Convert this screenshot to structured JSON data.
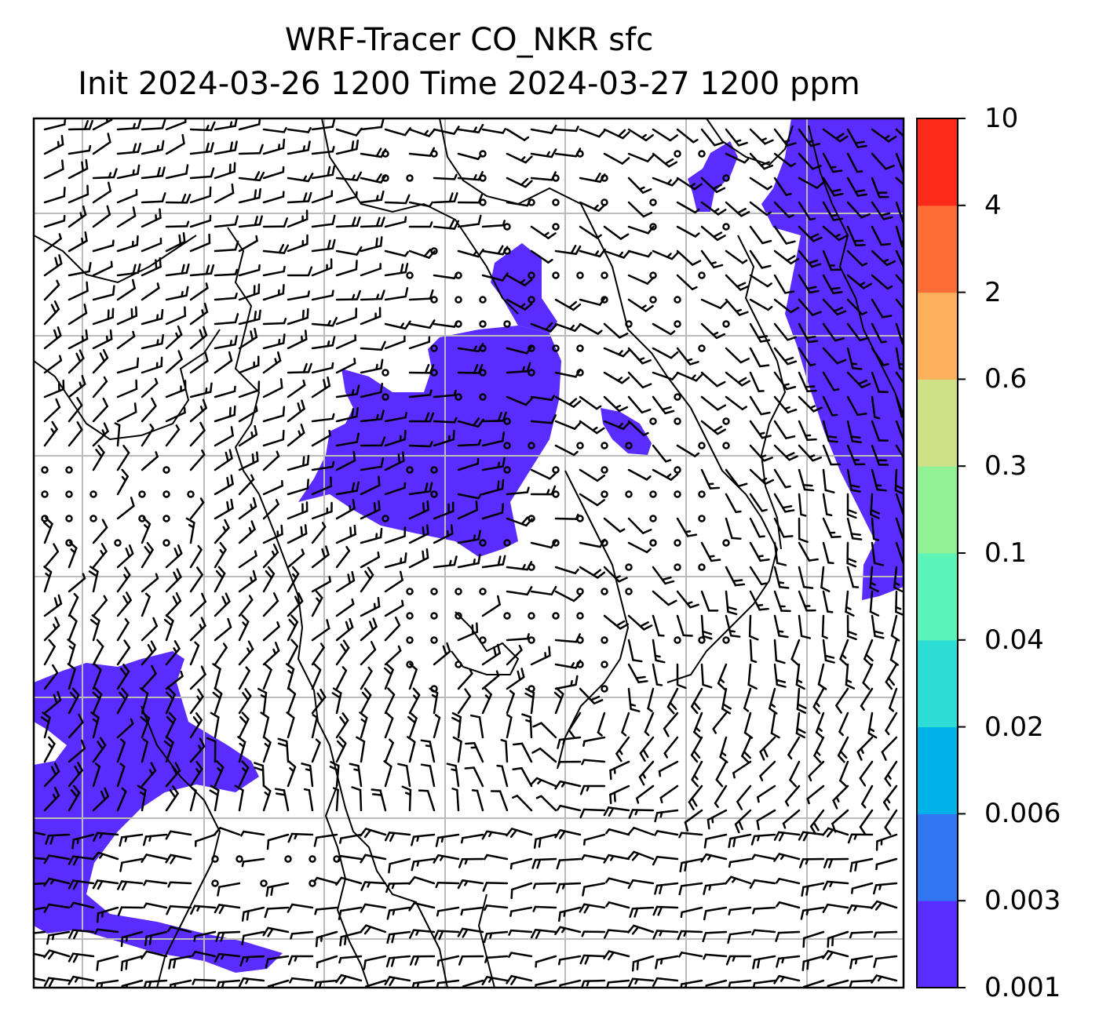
{
  "title": {
    "line1": "WRF-Tracer CO_NKR sfc",
    "line2": "Init 2024-03-26 1200 Time 2024-03-27 1200 ppm"
  },
  "colorbar": {
    "levels": [
      "0.001",
      "0.003",
      "0.006",
      "0.02",
      "0.04",
      "0.1",
      "0.3",
      "0.6",
      "2",
      "4",
      "10"
    ],
    "colors": [
      "#5b2cff",
      "#3176f0",
      "#00b2e8",
      "#2ddcd4",
      "#5df4b8",
      "#90f294",
      "#cfe086",
      "#fcb05c",
      "#ff6d36",
      "#fc2a1a"
    ]
  },
  "tracer_fill_color": "#5b2cff",
  "map_style": {
    "gridlines": true,
    "gridline_color": "#bbbbbb",
    "coastlines": true,
    "wind_barbs": true,
    "calm_markers": "circles"
  }
}
